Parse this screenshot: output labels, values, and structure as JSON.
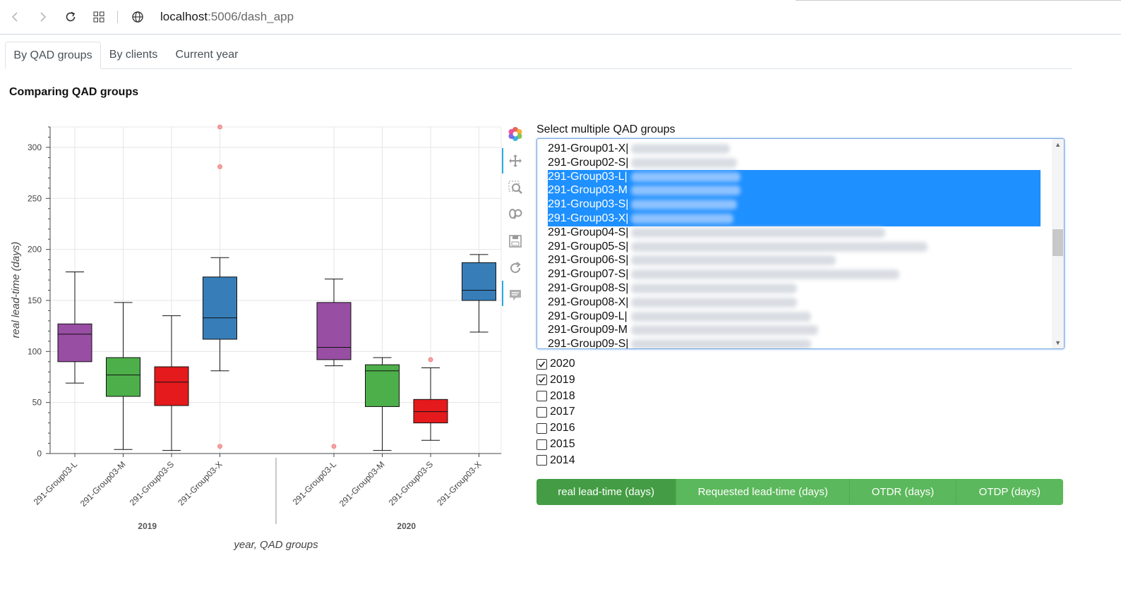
{
  "browser": {
    "url_host": "localhost",
    "url_path": ":5006/dash_app"
  },
  "tabs": [
    {
      "label": "By QAD groups",
      "active": true
    },
    {
      "label": "By clients",
      "active": false
    },
    {
      "label": "Current year",
      "active": false
    }
  ],
  "section_title": "Comparing QAD groups",
  "chart_data": {
    "type": "box",
    "ylabel": "real lead-time (days)",
    "xlabel": "year, QAD groups",
    "ylim": [
      0,
      320
    ],
    "yticks": [
      0,
      50,
      100,
      150,
      200,
      250,
      300
    ],
    "grid": true,
    "legend": "none",
    "factor_groups": [
      {
        "year": "2019",
        "boxes": [
          {
            "group": "291-Group03-L",
            "color": "#984ea3",
            "lower": 69,
            "q1": 90,
            "median": 117,
            "q3": 127,
            "upper": 178,
            "outliers": []
          },
          {
            "group": "291-Group03-M",
            "color": "#4daf4a",
            "lower": 4,
            "q1": 56,
            "median": 77,
            "q3": 94,
            "upper": 148,
            "outliers": []
          },
          {
            "group": "291-Group03-S",
            "color": "#e41a1c",
            "lower": 3,
            "q1": 47,
            "median": 70,
            "q3": 85,
            "upper": 135,
            "outliers": []
          },
          {
            "group": "291-Group03-X",
            "color": "#377eb8",
            "lower": 81,
            "q1": 112,
            "median": 133,
            "q3": 173,
            "upper": 192,
            "outliers": [
              320,
              281,
              7
            ]
          }
        ]
      },
      {
        "year": "2020",
        "boxes": [
          {
            "group": "291-Group03-L",
            "color": "#984ea3",
            "lower": 86,
            "q1": 92,
            "median": 104,
            "q3": 148,
            "upper": 171,
            "outliers": [
              7
            ]
          },
          {
            "group": "291-Group03-M",
            "color": "#4daf4a",
            "lower": 3,
            "q1": 46,
            "median": 81,
            "q3": 87,
            "upper": 94,
            "outliers": []
          },
          {
            "group": "291-Group03-S",
            "color": "#e41a1c",
            "lower": 13,
            "q1": 30,
            "median": 41,
            "q3": 53,
            "upper": 84,
            "outliers": [
              92
            ]
          },
          {
            "group": "291-Group03-X",
            "color": "#377eb8",
            "lower": 119,
            "q1": 150,
            "median": 160,
            "q3": 187,
            "upper": 195,
            "outliers": []
          }
        ]
      }
    ]
  },
  "toolbar": {
    "tools": [
      "bokeh-logo-icon",
      "pan-icon",
      "box-zoom-icon",
      "wheel-zoom-icon",
      "save-icon",
      "reset-icon",
      "hover-icon"
    ]
  },
  "group_select": {
    "label": "Select multiple QAD groups",
    "options": [
      {
        "label": "291-Group01-X|",
        "selected": false
      },
      {
        "label": "291-Group02-S|",
        "selected": false
      },
      {
        "label": "291-Group03-L|",
        "selected": true
      },
      {
        "label": "291-Group03-M",
        "selected": true
      },
      {
        "label": "291-Group03-S|",
        "selected": true
      },
      {
        "label": "291-Group03-X|",
        "selected": true
      },
      {
        "label": "291-Group04-S|",
        "selected": false
      },
      {
        "label": "291-Group05-S|",
        "selected": false
      },
      {
        "label": "291-Group06-S|",
        "selected": false
      },
      {
        "label": "291-Group07-S|",
        "selected": false
      },
      {
        "label": "291-Group08-S|",
        "selected": false
      },
      {
        "label": "291-Group08-X|",
        "selected": false
      },
      {
        "label": "291-Group09-L|",
        "selected": false
      },
      {
        "label": "291-Group09-M",
        "selected": false
      },
      {
        "label": "291-Group09-S|",
        "selected": false
      }
    ]
  },
  "years": [
    {
      "label": "2020",
      "checked": true
    },
    {
      "label": "2019",
      "checked": true
    },
    {
      "label": "2018",
      "checked": false
    },
    {
      "label": "2017",
      "checked": false
    },
    {
      "label": "2016",
      "checked": false
    },
    {
      "label": "2015",
      "checked": false
    },
    {
      "label": "2014",
      "checked": false
    }
  ],
  "metrics": [
    {
      "label": "real lead-time (days)",
      "active": true
    },
    {
      "label": "Requested lead-time (days)",
      "active": false
    },
    {
      "label": "OTDR (days)",
      "active": false
    },
    {
      "label": "OTDP (days)",
      "active": false
    }
  ]
}
